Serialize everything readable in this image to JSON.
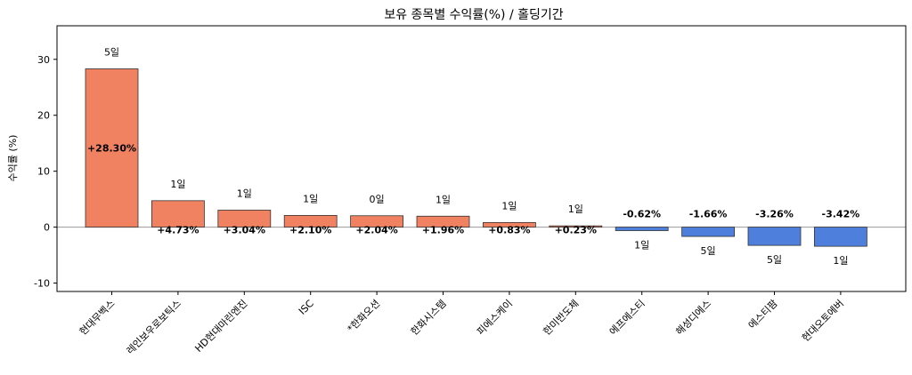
{
  "chart_data": {
    "type": "bar",
    "title": "보유 종목별 수익률(%) / 홀딩기간",
    "xlabel": "",
    "ylabel": "수익률 (%)",
    "ylim": [
      -11.5,
      36
    ],
    "yticks": [
      -10,
      0,
      10,
      20,
      30
    ],
    "categories": [
      "현대무벡스",
      "레인보우로보틱스",
      "HD현대마린엔진",
      "ISC",
      "*한화오션",
      "한화시스템",
      "피에스케이",
      "한미반도체",
      "에프에스티",
      "해성디에스",
      "에스티팜",
      "현대오토에버"
    ],
    "values": [
      28.3,
      4.73,
      3.04,
      2.1,
      2.04,
      1.96,
      0.83,
      0.23,
      -0.62,
      -1.66,
      -3.26,
      -3.42
    ],
    "value_labels": [
      "+28.30%",
      "+4.73%",
      "+3.04%",
      "+2.10%",
      "+2.04%",
      "+1.96%",
      "+0.83%",
      "+0.23%",
      "-0.62%",
      "-1.66%",
      "-3.26%",
      "-3.42%"
    ],
    "holding_days": [
      "5일",
      "1일",
      "1일",
      "1일",
      "0일",
      "1일",
      "1일",
      "1일",
      "1일",
      "5일",
      "5일",
      "1일"
    ],
    "colors": {
      "positive": "#f08262",
      "negative": "#4f7fdc"
    },
    "zero_line": true,
    "grid": false
  }
}
